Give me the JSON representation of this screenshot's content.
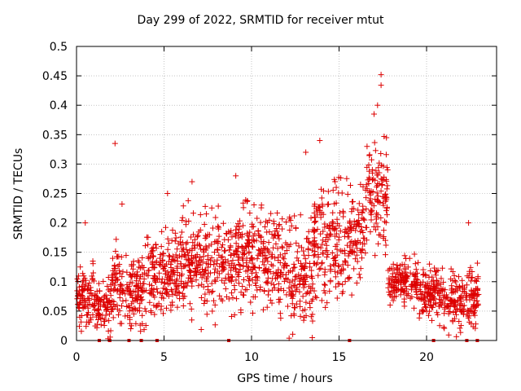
{
  "chart_data": {
    "type": "scatter",
    "title": "Day 299 of 2022, SRMTID for receiver mtut",
    "xlabel": "GPS time / hours",
    "ylabel": "SRMTID / TECUs",
    "xlim": [
      0,
      24
    ],
    "ylim": [
      0,
      0.5
    ],
    "xticks": [
      0,
      5,
      10,
      15,
      20
    ],
    "yticks": [
      0,
      0.05,
      0.1,
      0.15,
      0.2,
      0.25,
      0.3,
      0.35,
      0.4,
      0.45,
      0.5
    ],
    "grid": true,
    "marker": "+",
    "color": "#dd0000",
    "outliers": [
      {
        "x": 2.2,
        "y": 0.335
      },
      {
        "x": 17.4,
        "y": 0.452
      },
      {
        "x": 17.4,
        "y": 0.434
      },
      {
        "x": 17.2,
        "y": 0.4
      },
      {
        "x": 17.0,
        "y": 0.385
      },
      {
        "x": 13.9,
        "y": 0.34
      },
      {
        "x": 16.6,
        "y": 0.33
      },
      {
        "x": 13.1,
        "y": 0.32
      },
      {
        "x": 6.6,
        "y": 0.27
      },
      {
        "x": 9.1,
        "y": 0.28
      },
      {
        "x": 2.6,
        "y": 0.232
      },
      {
        "x": 5.2,
        "y": 0.25
      },
      {
        "x": 0.5,
        "y": 0.2
      },
      {
        "x": 22.4,
        "y": 0.2
      }
    ],
    "density_profile": [
      {
        "x_from": 0.0,
        "x_to": 1.0,
        "y_min": 0.0,
        "y_max": 0.18,
        "center": 0.07
      },
      {
        "x_from": 1.0,
        "x_to": 2.0,
        "y_min": 0.0,
        "y_max": 0.16,
        "center": 0.06
      },
      {
        "x_from": 2.0,
        "x_to": 4.0,
        "y_min": 0.0,
        "y_max": 0.18,
        "center": 0.09
      },
      {
        "x_from": 4.0,
        "x_to": 6.0,
        "y_min": 0.0,
        "y_max": 0.22,
        "center": 0.11
      },
      {
        "x_from": 6.0,
        "x_to": 8.0,
        "y_min": 0.0,
        "y_max": 0.26,
        "center": 0.13
      },
      {
        "x_from": 8.0,
        "x_to": 10.0,
        "y_min": 0.0,
        "y_max": 0.27,
        "center": 0.14
      },
      {
        "x_from": 10.0,
        "x_to": 12.0,
        "y_min": 0.0,
        "y_max": 0.26,
        "center": 0.14
      },
      {
        "x_from": 12.0,
        "x_to": 13.5,
        "y_min": 0.0,
        "y_max": 0.3,
        "center": 0.11
      },
      {
        "x_from": 13.5,
        "x_to": 15.5,
        "y_min": 0.02,
        "y_max": 0.32,
        "center": 0.17
      },
      {
        "x_from": 15.5,
        "x_to": 16.5,
        "y_min": 0.05,
        "y_max": 0.3,
        "center": 0.17
      },
      {
        "x_from": 16.5,
        "x_to": 17.8,
        "y_min": 0.1,
        "y_max": 0.38,
        "center": 0.24
      },
      {
        "x_from": 17.8,
        "x_to": 19.5,
        "y_min": 0.05,
        "y_max": 0.16,
        "center": 0.1
      },
      {
        "x_from": 19.5,
        "x_to": 21.0,
        "y_min": 0.02,
        "y_max": 0.15,
        "center": 0.08
      },
      {
        "x_from": 21.0,
        "x_to": 23.0,
        "y_min": 0.0,
        "y_max": 0.15,
        "center": 0.07
      }
    ],
    "zero_markers_x": [
      1.3,
      1.9,
      3.0,
      3.7,
      4.6,
      8.7,
      15.6,
      20.4,
      22.3,
      22.9
    ]
  }
}
